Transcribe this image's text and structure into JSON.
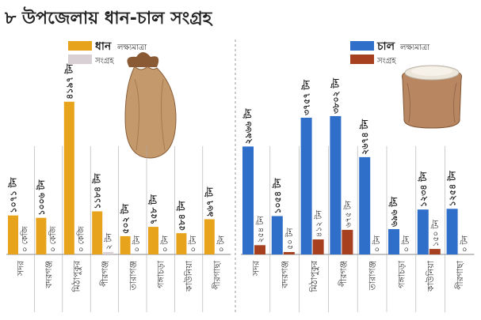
{
  "title": "৮ উপজেলায় ধান-চাল সংগ্রহ",
  "legends": {
    "paddy": {
      "label": "ধান",
      "target_label": "লক্ষ্যমাত্রা",
      "collected_label": "সংগ্রহ",
      "target_color": "#e8a31c",
      "collected_color": "#d8d0d4"
    },
    "rice": {
      "label": "চাল",
      "target_label": "লক্ষ্যমাত্রা",
      "collected_label": "সংগ্রহ",
      "target_color": "#2f6fc9",
      "collected_color": "#a6401f"
    }
  },
  "illustrations": [
    "paddy-sack-icon",
    "rice-sack-icon"
  ],
  "chart_data": [
    {
      "type": "bar",
      "name": "ধান",
      "categories": [
        "সদর",
        "বদরগঞ্জ",
        "মিঠাপুকুর",
        "পীরগঞ্জ",
        "তারাগঞ্জ",
        "গঙ্গাচড়া",
        "কাউনিয়া",
        "পীরগাছা"
      ],
      "series": [
        {
          "name": "লক্ষ্যমাত্রা",
          "values": [
            1071,
            1006,
            4197,
            1184,
            502,
            758,
            584,
            967
          ],
          "labels": [
            "১০৭১ টন",
            "১০০৬ টন",
            "৪১৯৭ টন",
            "১১৮৪ টন",
            "৫০২ টন",
            "৭৫৮ টন",
            "৫৮৪ টন",
            "৯৬৭ টন"
          ]
        },
        {
          "name": "সংগ্রহ",
          "values": [
            0,
            0,
            0,
            2,
            0,
            0,
            0,
            0
          ],
          "labels": [
            "০ কেজি",
            "০ কেজি",
            "০ কেজি",
            "২ টন",
            "০ টন",
            "০ টন",
            "০ টন",
            "০ টন"
          ]
        }
      ],
      "ylim": [
        0,
        4300
      ]
    },
    {
      "type": "bar",
      "name": "চাল",
      "categories": [
        "সদর",
        "বদরগঞ্জ",
        "মিঠাপুকুর",
        "পীরগঞ্জ",
        "তারাগঞ্জ",
        "গঙ্গাচড়া",
        "কাউনিয়া",
        "পীরগাছা"
      ],
      "series": [
        {
          "name": "লক্ষ্যমাত্রা",
          "values": [
            2966,
            1054,
            3757,
            3802,
            2674,
            696,
            1234,
            1254
          ],
          "labels": [
            "২৯৬৬ টন",
            "১০৫৪ টন",
            "৩৭৫৭ টন",
            "৩৮০২ টন",
            "২৬৭৪ টন",
            "৬৯৬ টন",
            "১২৩৪ টন",
            "১২৫৪ টন"
          ]
        },
        {
          "name": "সংগ্রহ",
          "values": [
            254,
            50,
            412,
            675,
            0,
            0,
            150,
            0
          ],
          "labels": [
            "২৫৪ টন",
            "৫০ টন",
            "৪১২ টন",
            "৬৭৫ টন",
            "০ টন",
            "০ টন",
            "১৫০ টন",
            "০ টন"
          ]
        }
      ],
      "ylim": [
        0,
        4300
      ]
    }
  ]
}
